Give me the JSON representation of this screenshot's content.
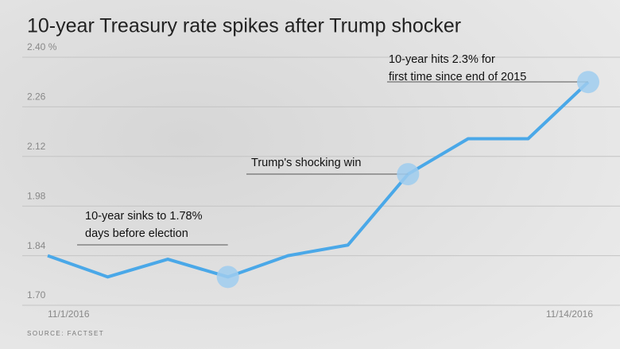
{
  "chart_data": {
    "type": "line",
    "title": "10-year Treasury rate spikes after Trump shocker",
    "source": "SOURCE: FACTSET",
    "categories": [
      "11/1/2016",
      null,
      null,
      null,
      null,
      null,
      null,
      null,
      null,
      "11/14/2016"
    ],
    "values": [
      1.84,
      1.78,
      1.83,
      1.78,
      1.84,
      1.87,
      2.07,
      2.17,
      2.17,
      2.33
    ],
    "color": "#4aa8e8",
    "ylim": [
      1.7,
      2.4
    ],
    "yticks": [
      {
        "value": 1.7,
        "label": "1.70"
      },
      {
        "value": 1.84,
        "label": "1.84"
      },
      {
        "value": 1.98,
        "label": "1.98"
      },
      {
        "value": 2.12,
        "label": "2.12"
      },
      {
        "value": 2.26,
        "label": "2.26"
      },
      {
        "value": 2.4,
        "label": "2.40 %"
      }
    ],
    "grid": true,
    "annotations": [
      [
        "10-year sinks to 1.78%",
        "days before election"
      ],
      [
        "Trump's shocking win"
      ],
      [
        "10-year hits 2.3% for",
        "first time since end of 2015"
      ]
    ]
  }
}
